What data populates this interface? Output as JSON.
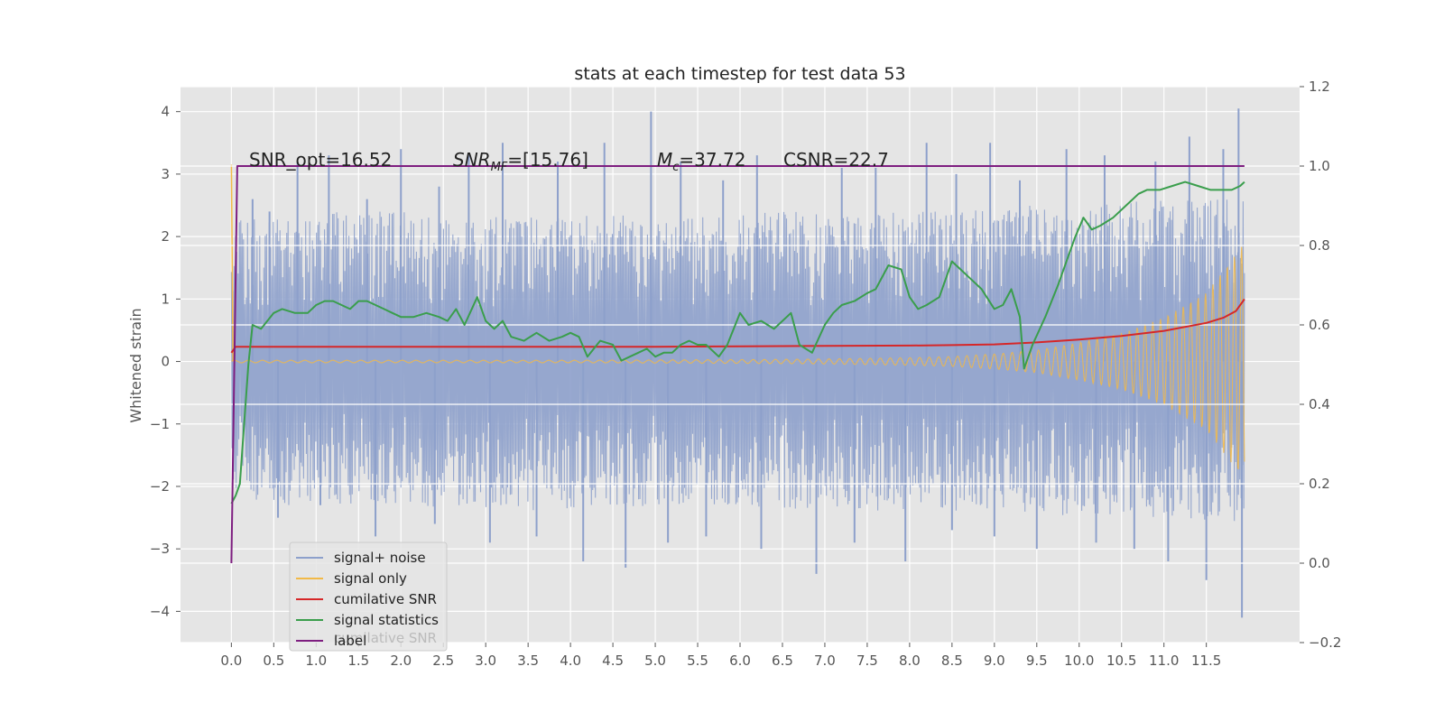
{
  "chart_data": {
    "type": "line",
    "title": "stats at each timestep for test data 53",
    "xlabel": "",
    "ylabel": "Whitened strain",
    "ylabel_right": "",
    "xlim": [
      -0.6,
      12.6
    ],
    "ylim": [
      -4.5,
      4.4
    ],
    "ylim_right": [
      -0.2,
      1.2
    ],
    "xticks": [
      0.0,
      0.5,
      1.0,
      1.5,
      2.0,
      2.5,
      3.0,
      3.5,
      4.0,
      4.5,
      5.0,
      5.5,
      6.0,
      6.5,
      7.0,
      7.5,
      8.0,
      8.5,
      9.0,
      9.5,
      10.0,
      10.5,
      11.0,
      11.5
    ],
    "xtick_labels": [
      "0.0",
      "0.5",
      "1.0",
      "1.5",
      "2.0",
      "2.5",
      "3.0",
      "3.5",
      "4.0",
      "4.5",
      "5.0",
      "5.5",
      "6.0",
      "6.5",
      "7.0",
      "7.5",
      "8.0",
      "8.5",
      "9.0",
      "9.5",
      "10.0",
      "10.5",
      "11.0",
      "11.5"
    ],
    "yticks_left": [
      -4,
      -3,
      -2,
      -1,
      0,
      1,
      2,
      3,
      4
    ],
    "ytick_labels_left": [
      "−4",
      "−3",
      "−2",
      "−1",
      "0",
      "1",
      "2",
      "3",
      "4"
    ],
    "yticks_right": [
      -0.2,
      0.0,
      0.2,
      0.4,
      0.6,
      0.8,
      1.0,
      1.2
    ],
    "ytick_labels_right": [
      "−0.2",
      "0.0",
      "0.2",
      "0.4",
      "0.6",
      "0.8",
      "1.0",
      "1.2"
    ],
    "grid": true,
    "legend_position": "lower-left",
    "annotations": {
      "snr_opt": "SNR_opt=16.52",
      "snr_mf_base": "SNR",
      "snr_mf_sub": "MF",
      "snr_mf_value": "=[15.76]",
      "mc_base": "M",
      "mc_sub": "c",
      "mc_value": "=37.72",
      "csnr": "CSNR=22.7"
    },
    "legend_ghost_text": "cumilative SNR",
    "series": [
      {
        "name": "signal+ noise",
        "axis": "left",
        "color": "#8da0cb",
        "envelope": {
          "x": [
            0.0,
            0.5,
            1.0,
            2.0,
            3.0,
            4.0,
            5.0,
            6.0,
            7.0,
            8.0,
            9.0,
            10.0,
            11.0,
            11.95
          ],
          "upper": [
            2.3,
            2.3,
            2.4,
            2.4,
            2.3,
            2.4,
            2.3,
            2.4,
            2.4,
            2.4,
            2.5,
            2.5,
            2.6,
            2.6
          ],
          "lower": [
            -2.2,
            -2.3,
            -2.3,
            -2.3,
            -2.4,
            -2.4,
            -2.3,
            -2.3,
            -2.4,
            -2.4,
            -2.4,
            -2.5,
            -2.5,
            -2.6
          ]
        },
        "peaks": [
          [
            0.25,
            2.6
          ],
          [
            0.45,
            2.4
          ],
          [
            0.78,
            3.2
          ],
          [
            1.15,
            3.3
          ],
          [
            1.6,
            2.6
          ],
          [
            2.0,
            3.4
          ],
          [
            2.45,
            2.8
          ],
          [
            2.8,
            3.3
          ],
          [
            3.2,
            3.5
          ],
          [
            3.85,
            3.2
          ],
          [
            4.4,
            3.5
          ],
          [
            4.95,
            4.0
          ],
          [
            5.3,
            3.2
          ],
          [
            5.8,
            2.9
          ],
          [
            6.2,
            3.3
          ],
          [
            7.2,
            3.1
          ],
          [
            7.6,
            3.1
          ],
          [
            8.2,
            3.5
          ],
          [
            8.55,
            3.0
          ],
          [
            8.95,
            3.5
          ],
          [
            9.3,
            2.9
          ],
          [
            9.85,
            3.4
          ],
          [
            10.3,
            3.3
          ],
          [
            10.9,
            3.2
          ],
          [
            11.3,
            3.6
          ],
          [
            11.7,
            3.4
          ],
          [
            11.88,
            4.05
          ],
          [
            0.55,
            -2.5
          ],
          [
            1.05,
            -2.3
          ],
          [
            1.7,
            -2.8
          ],
          [
            2.4,
            -2.6
          ],
          [
            3.05,
            -2.9
          ],
          [
            3.6,
            -2.8
          ],
          [
            4.15,
            -3.2
          ],
          [
            4.65,
            -3.3
          ],
          [
            5.15,
            -2.9
          ],
          [
            5.6,
            -2.8
          ],
          [
            6.25,
            -3.0
          ],
          [
            6.9,
            -3.4
          ],
          [
            7.35,
            -2.9
          ],
          [
            7.95,
            -3.2
          ],
          [
            8.5,
            -2.7
          ],
          [
            9.0,
            -2.8
          ],
          [
            9.5,
            -3.0
          ],
          [
            10.2,
            -2.9
          ],
          [
            10.65,
            -3.0
          ],
          [
            11.05,
            -3.2
          ],
          [
            11.5,
            -3.5
          ],
          [
            11.92,
            -4.1
          ]
        ]
      },
      {
        "name": "signal only",
        "axis": "left",
        "color": "#f2b947",
        "envelope": {
          "x": [
            0.0,
            2.0,
            4.0,
            6.0,
            7.0,
            8.0,
            8.5,
            9.0,
            9.5,
            10.0,
            10.5,
            11.0,
            11.5,
            11.95
          ],
          "amplitude": [
            0.02,
            0.02,
            0.02,
            0.03,
            0.04,
            0.06,
            0.08,
            0.12,
            0.18,
            0.3,
            0.45,
            0.7,
            1.1,
            1.9
          ]
        },
        "initial_spike": [
          [
            0.0,
            3.15
          ],
          [
            0.02,
            0.0
          ]
        ]
      },
      {
        "name": "cumilative SNR",
        "axis": "right",
        "color": "#d62728",
        "x": [
          0.0,
          0.05,
          1.0,
          2.0,
          3.0,
          4.0,
          5.0,
          6.0,
          7.0,
          8.0,
          8.5,
          9.0,
          9.5,
          10.0,
          10.5,
          11.0,
          11.5,
          11.7,
          11.85,
          11.95
        ],
        "y": [
          0.53,
          0.545,
          0.545,
          0.545,
          0.545,
          0.545,
          0.545,
          0.546,
          0.547,
          0.548,
          0.549,
          0.551,
          0.556,
          0.563,
          0.572,
          0.585,
          0.605,
          0.618,
          0.635,
          0.665
        ]
      },
      {
        "name": "signal statistics",
        "axis": "right",
        "color": "#3a9e4c",
        "x": [
          0.0,
          0.05,
          0.1,
          0.15,
          0.2,
          0.25,
          0.35,
          0.5,
          0.6,
          0.75,
          0.9,
          1.0,
          1.1,
          1.2,
          1.3,
          1.4,
          1.5,
          1.6,
          1.8,
          1.9,
          2.0,
          2.15,
          2.3,
          2.45,
          2.55,
          2.65,
          2.75,
          2.9,
          3.0,
          3.1,
          3.2,
          3.3,
          3.45,
          3.6,
          3.75,
          3.9,
          4.0,
          4.1,
          4.2,
          4.35,
          4.5,
          4.6,
          4.7,
          4.8,
          4.9,
          5.0,
          5.1,
          5.2,
          5.3,
          5.4,
          5.5,
          5.6,
          5.75,
          5.85,
          6.0,
          6.1,
          6.25,
          6.4,
          6.6,
          6.7,
          6.85,
          7.0,
          7.1,
          7.2,
          7.35,
          7.5,
          7.6,
          7.75,
          7.9,
          8.0,
          8.1,
          8.2,
          8.35,
          8.5,
          8.6,
          8.7,
          8.85,
          9.0,
          9.1,
          9.2,
          9.3,
          9.35,
          9.45,
          9.6,
          9.75,
          9.85,
          9.95,
          10.05,
          10.15,
          10.25,
          10.4,
          10.55,
          10.7,
          10.8,
          10.95,
          11.1,
          11.25,
          11.4,
          11.55,
          11.7,
          11.8,
          11.9,
          11.95
        ],
        "y": [
          0.15,
          0.17,
          0.2,
          0.35,
          0.5,
          0.6,
          0.59,
          0.63,
          0.64,
          0.63,
          0.63,
          0.65,
          0.66,
          0.66,
          0.65,
          0.64,
          0.66,
          0.66,
          0.64,
          0.63,
          0.62,
          0.62,
          0.63,
          0.62,
          0.61,
          0.64,
          0.6,
          0.67,
          0.61,
          0.59,
          0.61,
          0.57,
          0.56,
          0.58,
          0.56,
          0.57,
          0.58,
          0.57,
          0.52,
          0.56,
          0.55,
          0.51,
          0.52,
          0.53,
          0.54,
          0.52,
          0.53,
          0.53,
          0.55,
          0.56,
          0.55,
          0.55,
          0.52,
          0.55,
          0.63,
          0.6,
          0.61,
          0.59,
          0.63,
          0.55,
          0.53,
          0.6,
          0.63,
          0.65,
          0.66,
          0.68,
          0.69,
          0.75,
          0.74,
          0.67,
          0.64,
          0.65,
          0.67,
          0.76,
          0.74,
          0.72,
          0.69,
          0.64,
          0.65,
          0.69,
          0.62,
          0.49,
          0.55,
          0.62,
          0.7,
          0.76,
          0.82,
          0.87,
          0.84,
          0.85,
          0.87,
          0.9,
          0.93,
          0.94,
          0.94,
          0.95,
          0.96,
          0.95,
          0.94,
          0.94,
          0.94,
          0.95,
          0.96
        ]
      },
      {
        "name": "label",
        "axis": "right",
        "color": "#7e1e80",
        "x": [
          0.0,
          0.07,
          11.95
        ],
        "y": [
          0.0,
          1.0,
          1.0
        ]
      }
    ]
  }
}
